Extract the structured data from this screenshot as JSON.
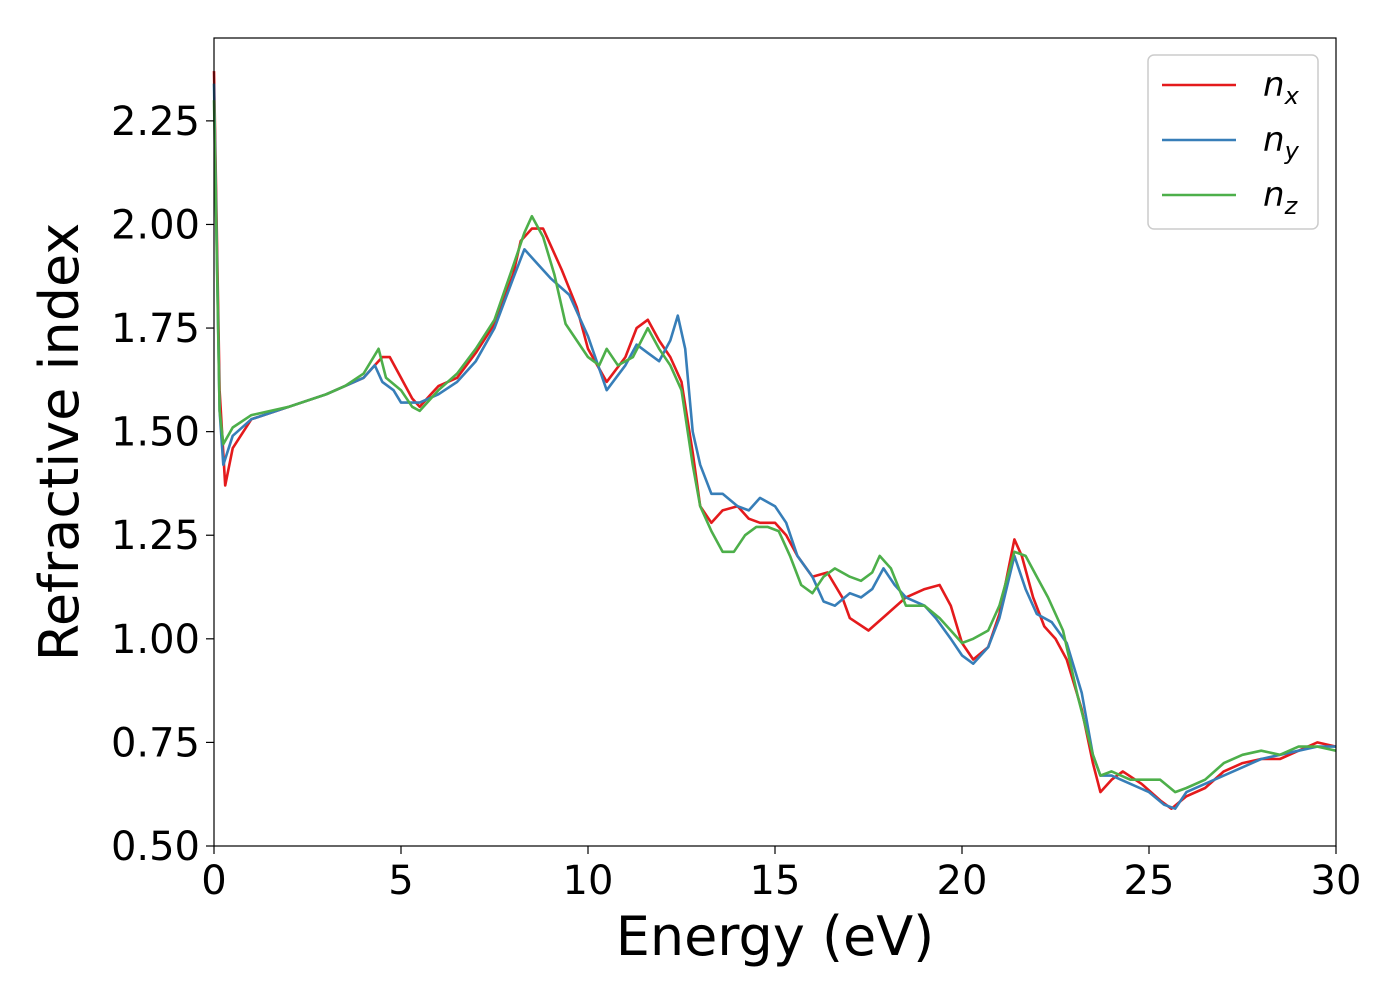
{
  "chart_data": {
    "type": "line",
    "xlabel": "Energy (eV)",
    "ylabel": "Refractive index",
    "xlim": [
      0,
      30
    ],
    "ylim": [
      0.5,
      2.45
    ],
    "xticks": [
      0,
      5,
      10,
      15,
      20,
      25,
      30
    ],
    "xtick_labels": [
      "0",
      "5",
      "10",
      "15",
      "20",
      "25",
      "30"
    ],
    "yticks": [
      0.5,
      0.75,
      1.0,
      1.25,
      1.5,
      1.75,
      2.0,
      2.25
    ],
    "ytick_labels": [
      "0.50",
      "0.75",
      "1.00",
      "1.25",
      "1.50",
      "1.75",
      "2.00",
      "2.25"
    ],
    "grid": false,
    "legend_position": "top-right",
    "series": [
      {
        "name": "n_x",
        "label_base": "n",
        "label_sub": "x",
        "color": "#e41a1c",
        "points": [
          [
            0,
            2.37
          ],
          [
            0.15,
            1.6
          ],
          [
            0.3,
            1.37
          ],
          [
            0.5,
            1.46
          ],
          [
            1,
            1.53
          ],
          [
            2,
            1.56
          ],
          [
            3,
            1.59
          ],
          [
            3.5,
            1.61
          ],
          [
            4,
            1.63
          ],
          [
            4.3,
            1.66
          ],
          [
            4.5,
            1.68
          ],
          [
            4.7,
            1.68
          ],
          [
            5,
            1.63
          ],
          [
            5.3,
            1.58
          ],
          [
            5.5,
            1.56
          ],
          [
            5.8,
            1.59
          ],
          [
            6,
            1.61
          ],
          [
            6.5,
            1.63
          ],
          [
            7,
            1.69
          ],
          [
            7.5,
            1.76
          ],
          [
            8,
            1.88
          ],
          [
            8.2,
            1.96
          ],
          [
            8.5,
            1.99
          ],
          [
            8.8,
            1.99
          ],
          [
            9,
            1.95
          ],
          [
            9.3,
            1.89
          ],
          [
            9.7,
            1.8
          ],
          [
            10,
            1.7
          ],
          [
            10.5,
            1.62
          ],
          [
            11,
            1.68
          ],
          [
            11.3,
            1.75
          ],
          [
            11.6,
            1.77
          ],
          [
            11.9,
            1.72
          ],
          [
            12.2,
            1.68
          ],
          [
            12.5,
            1.62
          ],
          [
            12.8,
            1.45
          ],
          [
            13,
            1.32
          ],
          [
            13.3,
            1.28
          ],
          [
            13.6,
            1.31
          ],
          [
            14,
            1.32
          ],
          [
            14.3,
            1.29
          ],
          [
            14.6,
            1.28
          ],
          [
            15,
            1.28
          ],
          [
            15.3,
            1.25
          ],
          [
            15.6,
            1.2
          ],
          [
            16,
            1.15
          ],
          [
            16.4,
            1.16
          ],
          [
            16.8,
            1.1
          ],
          [
            17,
            1.05
          ],
          [
            17.5,
            1.02
          ],
          [
            18,
            1.06
          ],
          [
            18.5,
            1.1
          ],
          [
            19,
            1.12
          ],
          [
            19.4,
            1.13
          ],
          [
            19.7,
            1.08
          ],
          [
            20,
            0.99
          ],
          [
            20.3,
            0.95
          ],
          [
            20.7,
            0.98
          ],
          [
            21,
            1.06
          ],
          [
            21.4,
            1.24
          ],
          [
            21.6,
            1.2
          ],
          [
            21.9,
            1.1
          ],
          [
            22.2,
            1.03
          ],
          [
            22.5,
            1.0
          ],
          [
            22.8,
            0.95
          ],
          [
            23.2,
            0.83
          ],
          [
            23.5,
            0.7
          ],
          [
            23.7,
            0.63
          ],
          [
            24,
            0.66
          ],
          [
            24.3,
            0.68
          ],
          [
            24.8,
            0.65
          ],
          [
            25.3,
            0.61
          ],
          [
            25.6,
            0.59
          ],
          [
            26,
            0.62
          ],
          [
            26.5,
            0.64
          ],
          [
            27,
            0.68
          ],
          [
            27.5,
            0.7
          ],
          [
            28,
            0.71
          ],
          [
            28.5,
            0.71
          ],
          [
            29,
            0.73
          ],
          [
            29.5,
            0.75
          ],
          [
            30,
            0.74
          ]
        ]
      },
      {
        "name": "n_y",
        "label_base": "n",
        "label_sub": "y",
        "color": "#377eb8",
        "points": [
          [
            0,
            2.34
          ],
          [
            0.15,
            1.55
          ],
          [
            0.25,
            1.42
          ],
          [
            0.5,
            1.49
          ],
          [
            1,
            1.53
          ],
          [
            2,
            1.56
          ],
          [
            3,
            1.59
          ],
          [
            3.5,
            1.61
          ],
          [
            4,
            1.63
          ],
          [
            4.3,
            1.66
          ],
          [
            4.5,
            1.62
          ],
          [
            4.8,
            1.6
          ],
          [
            5,
            1.57
          ],
          [
            5.5,
            1.57
          ],
          [
            6,
            1.59
          ],
          [
            6.5,
            1.62
          ],
          [
            7,
            1.67
          ],
          [
            7.5,
            1.75
          ],
          [
            8,
            1.87
          ],
          [
            8.3,
            1.94
          ],
          [
            8.6,
            1.91
          ],
          [
            9,
            1.87
          ],
          [
            9.5,
            1.83
          ],
          [
            10,
            1.73
          ],
          [
            10.5,
            1.6
          ],
          [
            11,
            1.66
          ],
          [
            11.3,
            1.71
          ],
          [
            11.6,
            1.69
          ],
          [
            11.9,
            1.67
          ],
          [
            12.2,
            1.72
          ],
          [
            12.4,
            1.78
          ],
          [
            12.6,
            1.7
          ],
          [
            12.8,
            1.5
          ],
          [
            13,
            1.42
          ],
          [
            13.3,
            1.35
          ],
          [
            13.6,
            1.35
          ],
          [
            14,
            1.32
          ],
          [
            14.3,
            1.31
          ],
          [
            14.6,
            1.34
          ],
          [
            15,
            1.32
          ],
          [
            15.3,
            1.28
          ],
          [
            15.6,
            1.2
          ],
          [
            16,
            1.15
          ],
          [
            16.3,
            1.09
          ],
          [
            16.6,
            1.08
          ],
          [
            17,
            1.11
          ],
          [
            17.3,
            1.1
          ],
          [
            17.6,
            1.12
          ],
          [
            17.9,
            1.17
          ],
          [
            18.2,
            1.13
          ],
          [
            18.5,
            1.1
          ],
          [
            19,
            1.08
          ],
          [
            19.3,
            1.05
          ],
          [
            19.7,
            1.0
          ],
          [
            20,
            0.96
          ],
          [
            20.3,
            0.94
          ],
          [
            20.7,
            0.98
          ],
          [
            21,
            1.05
          ],
          [
            21.4,
            1.2
          ],
          [
            21.7,
            1.12
          ],
          [
            22,
            1.06
          ],
          [
            22.4,
            1.04
          ],
          [
            22.8,
            0.99
          ],
          [
            23.2,
            0.87
          ],
          [
            23.5,
            0.72
          ],
          [
            23.7,
            0.67
          ],
          [
            24,
            0.67
          ],
          [
            24.5,
            0.65
          ],
          [
            25,
            0.63
          ],
          [
            25.4,
            0.6
          ],
          [
            25.7,
            0.59
          ],
          [
            26,
            0.63
          ],
          [
            26.5,
            0.65
          ],
          [
            27,
            0.67
          ],
          [
            27.5,
            0.69
          ],
          [
            28,
            0.71
          ],
          [
            28.5,
            0.72
          ],
          [
            29,
            0.73
          ],
          [
            29.5,
            0.74
          ],
          [
            30,
            0.74
          ]
        ]
      },
      {
        "name": "n_z",
        "label_base": "n",
        "label_sub": "z",
        "color": "#4daf4a",
        "points": [
          [
            0,
            2.3
          ],
          [
            0.15,
            1.55
          ],
          [
            0.25,
            1.47
          ],
          [
            0.5,
            1.51
          ],
          [
            1,
            1.54
          ],
          [
            2,
            1.56
          ],
          [
            3,
            1.59
          ],
          [
            3.5,
            1.61
          ],
          [
            4,
            1.64
          ],
          [
            4.4,
            1.7
          ],
          [
            4.6,
            1.63
          ],
          [
            5,
            1.6
          ],
          [
            5.3,
            1.56
          ],
          [
            5.5,
            1.55
          ],
          [
            6,
            1.6
          ],
          [
            6.5,
            1.64
          ],
          [
            7,
            1.7
          ],
          [
            7.5,
            1.77
          ],
          [
            8,
            1.9
          ],
          [
            8.3,
            1.98
          ],
          [
            8.5,
            2.02
          ],
          [
            8.8,
            1.97
          ],
          [
            9.1,
            1.88
          ],
          [
            9.4,
            1.76
          ],
          [
            9.7,
            1.72
          ],
          [
            10,
            1.68
          ],
          [
            10.3,
            1.66
          ],
          [
            10.5,
            1.7
          ],
          [
            10.8,
            1.66
          ],
          [
            11.2,
            1.68
          ],
          [
            11.6,
            1.75
          ],
          [
            11.9,
            1.7
          ],
          [
            12.2,
            1.66
          ],
          [
            12.5,
            1.6
          ],
          [
            12.8,
            1.42
          ],
          [
            13,
            1.32
          ],
          [
            13.3,
            1.26
          ],
          [
            13.6,
            1.21
          ],
          [
            13.9,
            1.21
          ],
          [
            14.2,
            1.25
          ],
          [
            14.5,
            1.27
          ],
          [
            14.8,
            1.27
          ],
          [
            15.1,
            1.26
          ],
          [
            15.4,
            1.2
          ],
          [
            15.7,
            1.13
          ],
          [
            16,
            1.11
          ],
          [
            16.3,
            1.15
          ],
          [
            16.6,
            1.17
          ],
          [
            17,
            1.15
          ],
          [
            17.3,
            1.14
          ],
          [
            17.6,
            1.16
          ],
          [
            17.8,
            1.2
          ],
          [
            18.1,
            1.17
          ],
          [
            18.5,
            1.08
          ],
          [
            19,
            1.08
          ],
          [
            19.4,
            1.05
          ],
          [
            19.7,
            1.02
          ],
          [
            20,
            0.99
          ],
          [
            20.3,
            1.0
          ],
          [
            20.7,
            1.02
          ],
          [
            21,
            1.08
          ],
          [
            21.4,
            1.21
          ],
          [
            21.7,
            1.2
          ],
          [
            22,
            1.15
          ],
          [
            22.3,
            1.1
          ],
          [
            22.7,
            1.02
          ],
          [
            23.1,
            0.86
          ],
          [
            23.5,
            0.72
          ],
          [
            23.7,
            0.67
          ],
          [
            24,
            0.68
          ],
          [
            24.5,
            0.66
          ],
          [
            25,
            0.66
          ],
          [
            25.3,
            0.66
          ],
          [
            25.7,
            0.63
          ],
          [
            26,
            0.64
          ],
          [
            26.5,
            0.66
          ],
          [
            27,
            0.7
          ],
          [
            27.5,
            0.72
          ],
          [
            28,
            0.73
          ],
          [
            28.5,
            0.72
          ],
          [
            29,
            0.74
          ],
          [
            29.5,
            0.74
          ],
          [
            30,
            0.73
          ]
        ]
      }
    ]
  }
}
